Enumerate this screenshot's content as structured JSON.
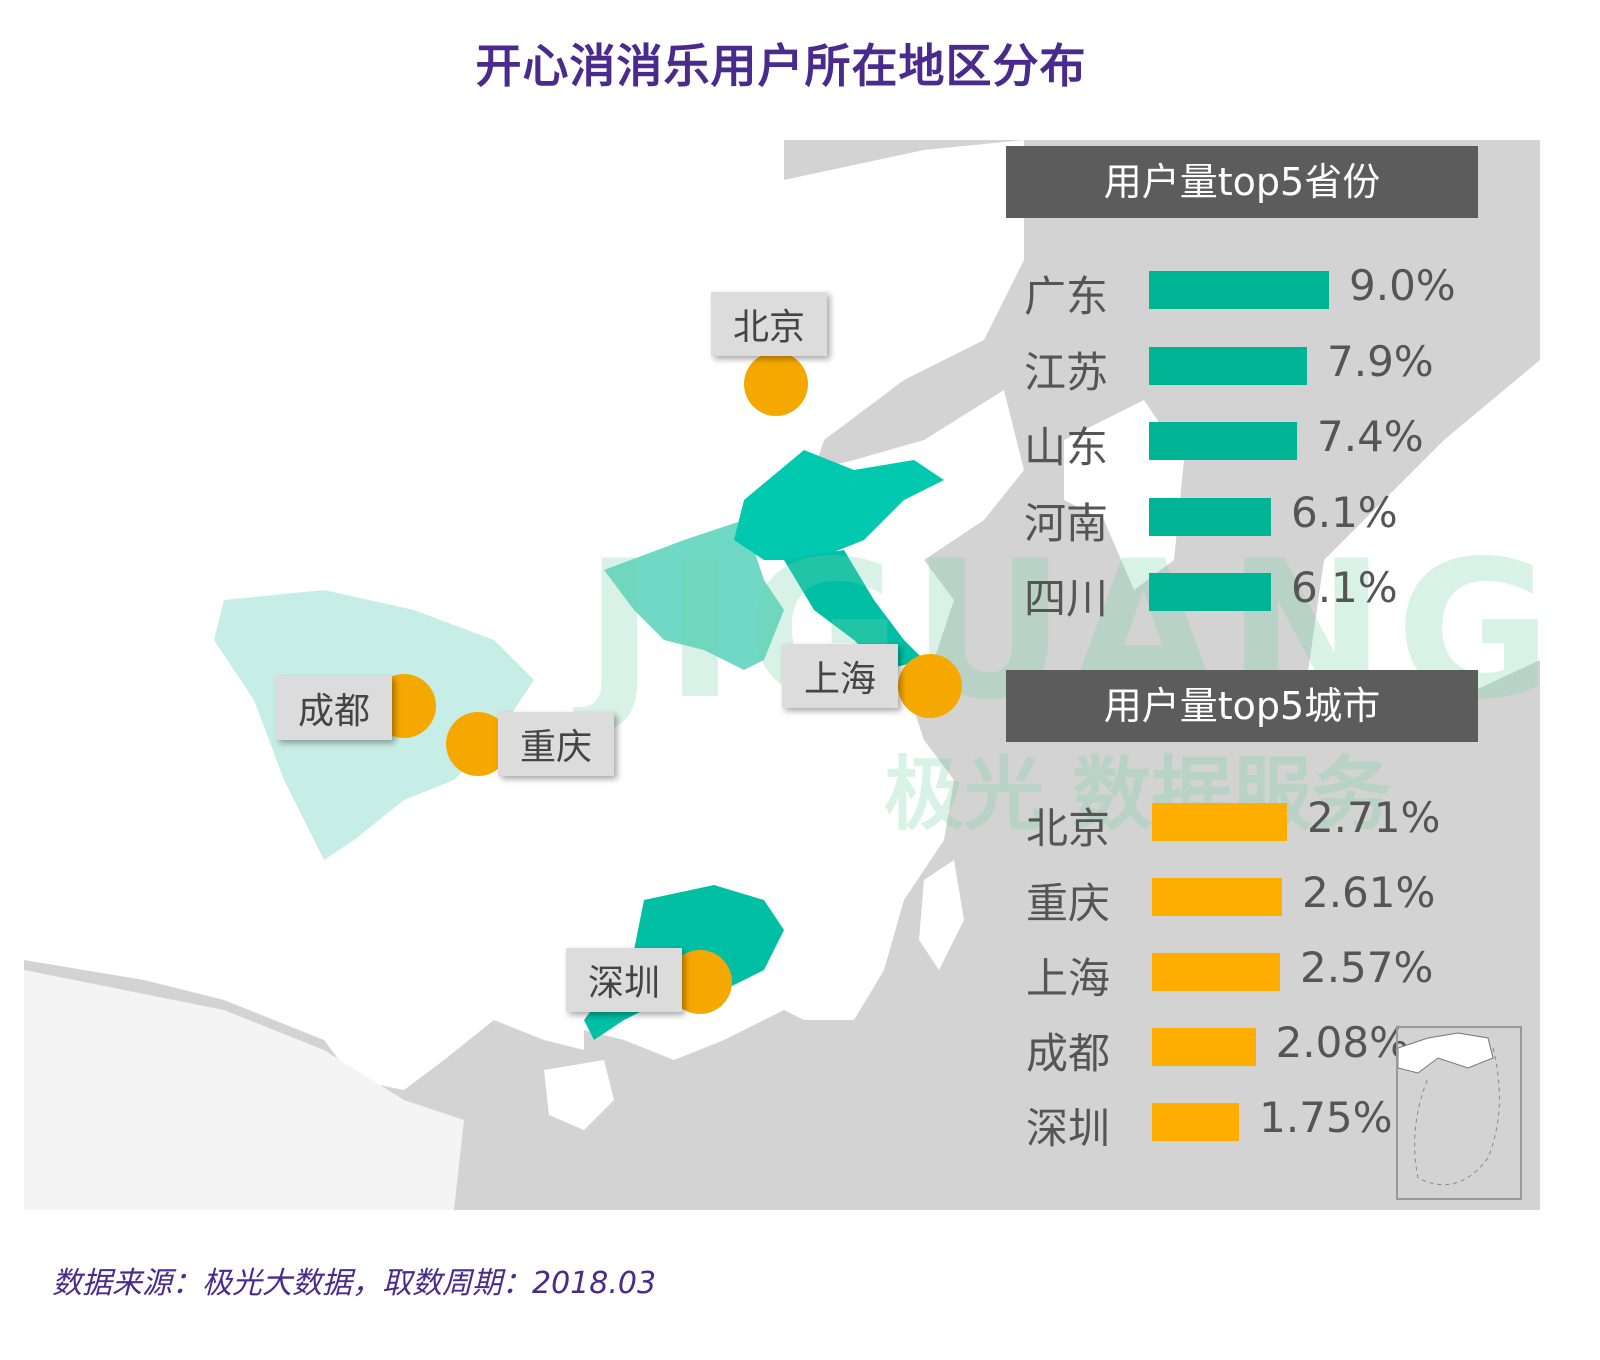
{
  "title": "开心消消乐用户所在地区分布",
  "map": {
    "sea_color": "#d3d3d3",
    "land_color": "#ffffff",
    "province_colors": {
      "广东": "#00bfa5",
      "江苏": "#00bfa5",
      "山东": "#00c9b0",
      "河南": "#6fd9c6",
      "四川": "#c7eee6"
    },
    "city_dot_color": "#f5a800",
    "city_tags": [
      "北京",
      "上海",
      "成都",
      "重庆",
      "深圳"
    ],
    "watermark": {
      "latin": "JIGUANG",
      "cn": "极光 数据服务"
    }
  },
  "chart_data": [
    {
      "type": "bar",
      "orientation": "horizontal",
      "title": "用户量top5省份",
      "categories": [
        "广东",
        "江苏",
        "山东",
        "河南",
        "四川"
      ],
      "values": [
        9.0,
        7.9,
        7.4,
        6.1,
        6.1
      ],
      "labels": [
        "9.0%",
        "7.9%",
        "7.4%",
        "6.1%",
        "6.1%"
      ],
      "unit": "%",
      "color": "#00b595"
    },
    {
      "type": "bar",
      "orientation": "horizontal",
      "title": "用户量top5城市",
      "categories": [
        "北京",
        "重庆",
        "上海",
        "成都",
        "深圳"
      ],
      "values": [
        2.71,
        2.61,
        2.57,
        2.08,
        1.75
      ],
      "labels": [
        "2.71%",
        "2.61%",
        "2.57%",
        "2.08%",
        "1.75%"
      ],
      "unit": "%",
      "color": "#ffae00"
    }
  ],
  "source": "数据来源：极光大数据，取数周期：2018.03"
}
